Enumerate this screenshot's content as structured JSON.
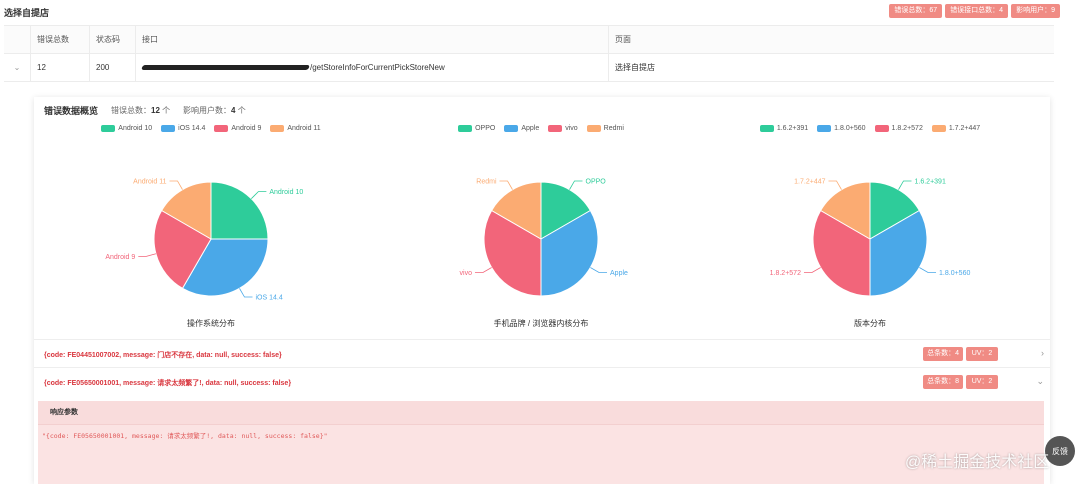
{
  "page": {
    "title": "选择自提店"
  },
  "top_badges": [
    {
      "label": "错误总数：67"
    },
    {
      "label": "错误接口总数：4"
    },
    {
      "label": "影响用户：9"
    }
  ],
  "table": {
    "columns": [
      "错误总数",
      "状态码",
      "接口",
      "页面"
    ],
    "row": {
      "error_count": "12",
      "status_code": "200",
      "api_suffix": "/getStoreInfoForCurrentPickStoreNew",
      "page": "选择自提店"
    }
  },
  "overview": {
    "title": "错误数据概览",
    "total_label": "错误总数：",
    "total_value": "12",
    "total_unit": "个",
    "users_label": "影响用户数：",
    "users_value": "4",
    "users_unit": "个"
  },
  "colors": [
    "#2ecc9a",
    "#4aa8e8",
    "#f2657a",
    "#fbab72"
  ],
  "chart_data": [
    {
      "type": "pie",
      "title": "操作系统分布",
      "categories": [
        "Android 10",
        "iOS 14.4",
        "Android 9",
        "Android 11"
      ],
      "values": [
        3,
        4,
        3,
        2
      ]
    },
    {
      "type": "pie",
      "title": "手机品牌 / 浏览器内核分布",
      "categories": [
        "OPPO",
        "Apple",
        "vivo",
        "Redmi"
      ],
      "values": [
        2,
        4,
        4,
        2
      ]
    },
    {
      "type": "pie",
      "title": "版本分布",
      "categories": [
        "1.6.2+391",
        "1.8.0+560",
        "1.8.2+572",
        "1.7.2+447"
      ],
      "values": [
        2,
        4,
        4,
        2
      ]
    }
  ],
  "errors": [
    {
      "message": "{code: FE04451007002, message: 门店不存在, data: null, success: false}",
      "total_label": "总条数：4",
      "uv_label": "UV：2",
      "chevron": "›"
    },
    {
      "message": "{code: FE05650001001, message: 请求太频繁了!, data: null, success: false}",
      "total_label": "总条数：8",
      "uv_label": "UV：2",
      "chevron": "⌄"
    }
  ],
  "response": {
    "title": "响应参数",
    "body": "\"{code: FE05650001001, message: 请求太频繁了!, data: null, success: false}\""
  },
  "float_button": {
    "label": "反馈"
  },
  "watermark": "@稀土掘金技术社区"
}
